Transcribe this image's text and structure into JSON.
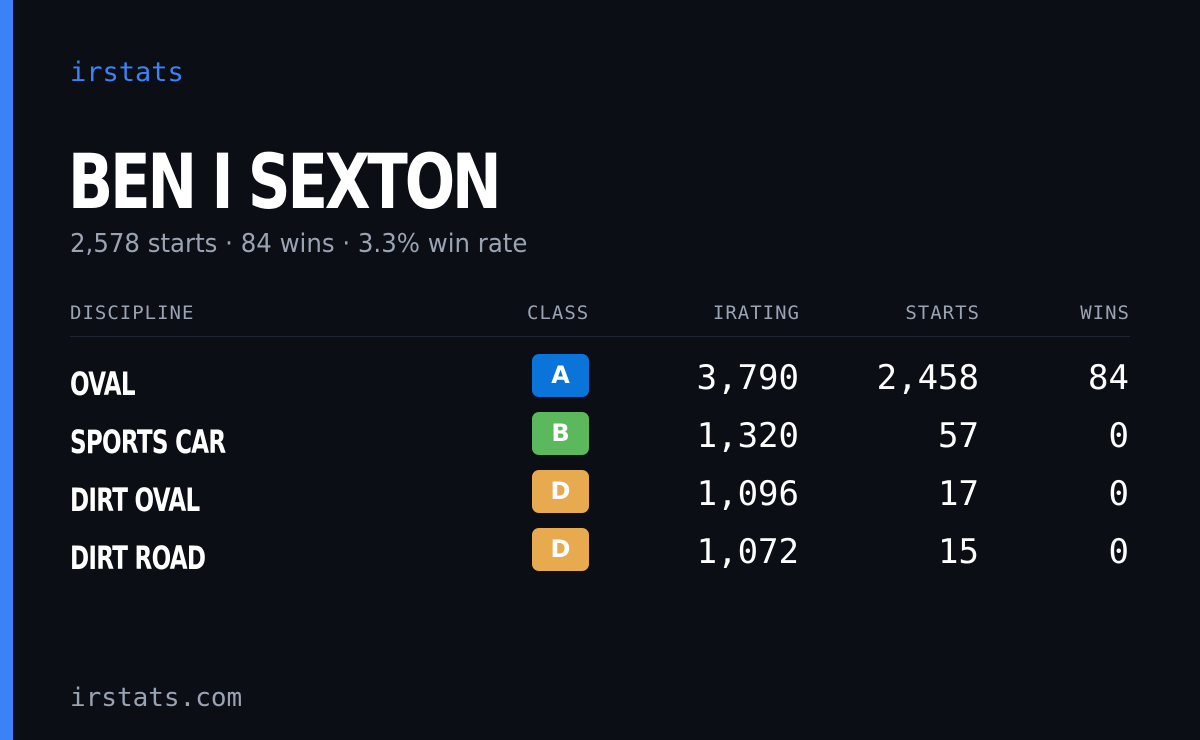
{
  "brand": "irstats",
  "driver": {
    "name": "BEN I SEXTON",
    "summary": "2,578 starts · 84 wins · 3.3% win rate"
  },
  "table": {
    "headers": {
      "discipline": "DISCIPLINE",
      "class": "CLASS",
      "irating": "IRATING",
      "starts": "STARTS",
      "wins": "WINS"
    },
    "rows": [
      {
        "discipline": "OVAL",
        "class": "A",
        "class_color": "#0a74da",
        "irating": "3,790",
        "starts": "2,458",
        "wins": "84"
      },
      {
        "discipline": "SPORTS CAR",
        "class": "B",
        "class_color": "#5cb85c",
        "irating": "1,320",
        "starts": "57",
        "wins": "0"
      },
      {
        "discipline": "DIRT OVAL",
        "class": "D",
        "class_color": "#e8aa4e",
        "irating": "1,096",
        "starts": "17",
        "wins": "0"
      },
      {
        "discipline": "DIRT ROAD",
        "class": "D",
        "class_color": "#e8aa4e",
        "irating": "1,072",
        "starts": "15",
        "wins": "0"
      }
    ]
  },
  "footer": {
    "url": "irstats.com"
  },
  "colors": {
    "background": "#0b0e15",
    "accent": "#3b82f6",
    "muted_text": "#9aa3b2"
  }
}
